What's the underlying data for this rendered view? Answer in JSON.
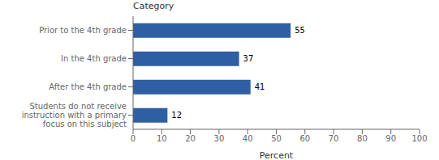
{
  "chart_data": {
    "type": "bar",
    "orientation": "horizontal",
    "categories": [
      "Prior to the 4th grade",
      "In the 4th grade",
      "After the 4th grade",
      "Students do not receive\ninstruction with a primary\nfocus on this subject"
    ],
    "values": [
      55,
      37,
      41,
      12
    ],
    "color": "#2e5fa3",
    "xlabel": "Percent",
    "ylabel": "Category",
    "xlim": [
      0,
      100
    ],
    "xticks": [
      0,
      10,
      20,
      30,
      40,
      50,
      60,
      70,
      80,
      90,
      100
    ],
    "data_labels": true,
    "grid": false
  }
}
